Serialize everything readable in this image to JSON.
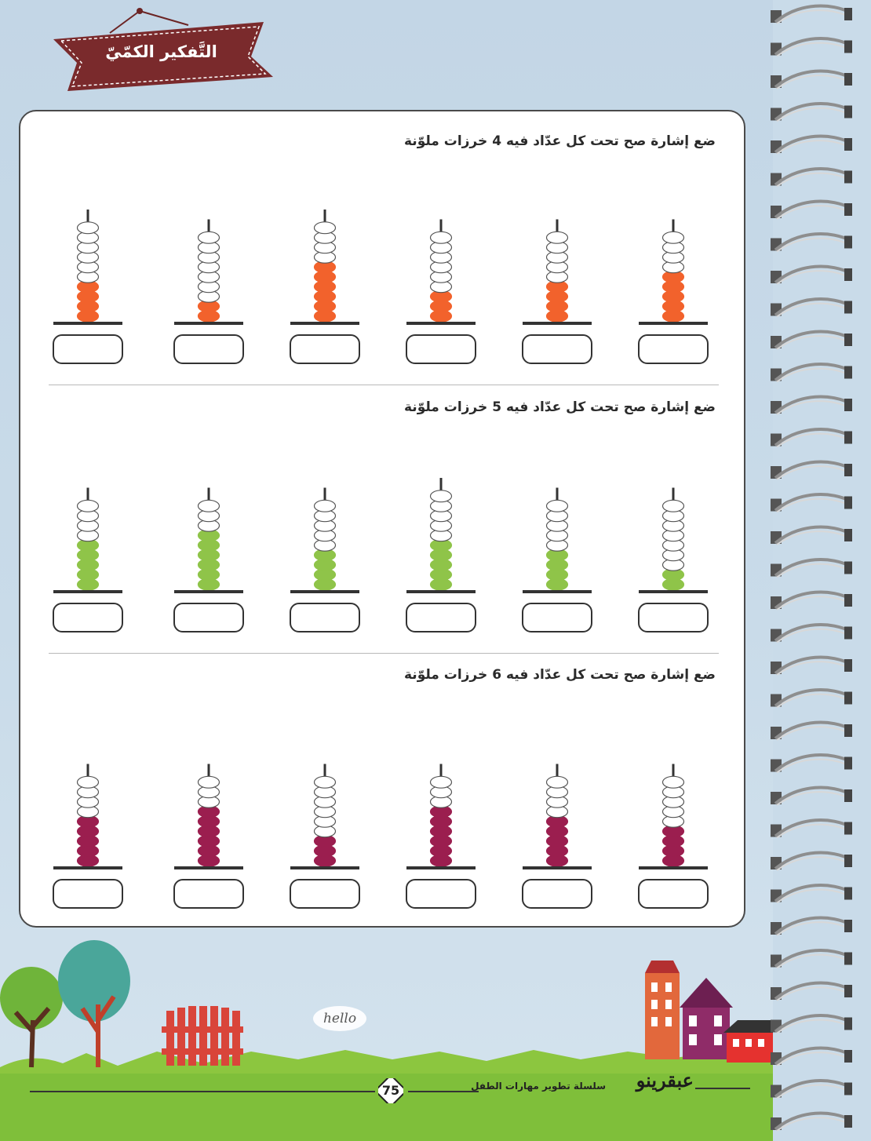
{
  "header": {
    "title": "التَّفكير الكمّيّ"
  },
  "exercises": [
    {
      "instruction": "ضع إشارة صح تحت كل عدّاد فيه 4 خرزات ملوّنة",
      "bead_color": "#f2622c",
      "abacuses": [
        {
          "total_beads": 10,
          "colored_beads": 4
        },
        {
          "total_beads": 9,
          "colored_beads": 2
        },
        {
          "total_beads": 10,
          "colored_beads": 6
        },
        {
          "total_beads": 9,
          "colored_beads": 3
        },
        {
          "total_beads": 9,
          "colored_beads": 4
        },
        {
          "total_beads": 9,
          "colored_beads": 5
        }
      ]
    },
    {
      "instruction": "ضع إشارة صح تحت كل عدّاد فيه 5 خرزات ملوّنة",
      "bead_color": "#8fc449",
      "abacuses": [
        {
          "total_beads": 9,
          "colored_beads": 5
        },
        {
          "total_beads": 9,
          "colored_beads": 6
        },
        {
          "total_beads": 9,
          "colored_beads": 4
        },
        {
          "total_beads": 10,
          "colored_beads": 5
        },
        {
          "total_beads": 9,
          "colored_beads": 4
        },
        {
          "total_beads": 9,
          "colored_beads": 2
        }
      ]
    },
    {
      "instruction": "ضع إشارة صح تحت كل عدّاد فيه 6 خرزات ملوّنة",
      "bead_color": "#9b1e4f",
      "abacuses": [
        {
          "total_beads": 9,
          "colored_beads": 5
        },
        {
          "total_beads": 9,
          "colored_beads": 6
        },
        {
          "total_beads": 9,
          "colored_beads": 3
        },
        {
          "total_beads": 9,
          "colored_beads": 6
        },
        {
          "total_beads": 9,
          "colored_beads": 5
        },
        {
          "total_beads": 9,
          "colored_beads": 4
        }
      ]
    }
  ],
  "footer": {
    "page_number": "75",
    "series_title": "سلسلة تطوير مهارات الطفل",
    "brand": "عبقرينو"
  },
  "scene": {
    "sign_text": "hello"
  },
  "colors": {
    "banner": "#7a2a2c",
    "grass": "#8cc63f",
    "spiral": "#9a9a9a"
  }
}
